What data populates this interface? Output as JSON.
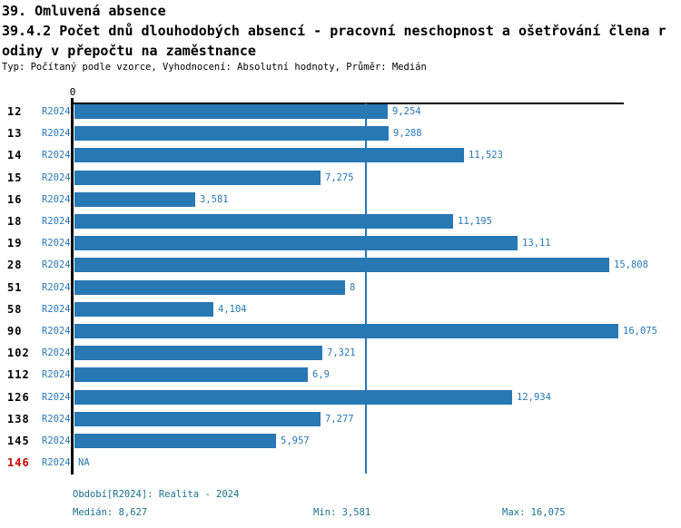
{
  "header": {
    "title": "39. Omluvená absence",
    "subtitle_line1": "39.4.2 Počet dnů dlouhodobých absencí - pracovní neschopnost a ošetřování člena r",
    "subtitle_line2": "odiny v přepočtu na zaměstnance",
    "meta": "Typ: Počítaný podle vzorce, Vyhodnocení: Absolutní hodnoty, Průměr: Medián"
  },
  "chart_data": {
    "type": "bar",
    "orientation": "horizontal",
    "title": "39.4.2 Počet dnů dlouhodobých absencí - pracovní neschopnost a ošetřování člena rodiny v přepočtu na zaměstnance",
    "series_label": "R2024",
    "axis": {
      "origin_label": "0",
      "xlim": [
        0,
        16.24
      ],
      "grid": false,
      "median_line_value": 8.627
    },
    "rows": [
      {
        "id": "12",
        "value": 9.254,
        "display": "9,254",
        "highlight": false
      },
      {
        "id": "13",
        "value": 9.288,
        "display": "9,288",
        "highlight": false
      },
      {
        "id": "14",
        "value": 11.523,
        "display": "11,523",
        "highlight": false
      },
      {
        "id": "15",
        "value": 7.275,
        "display": "7,275",
        "highlight": false
      },
      {
        "id": "16",
        "value": 3.581,
        "display": "3,581",
        "highlight": false
      },
      {
        "id": "18",
        "value": 11.195,
        "display": "11,195",
        "highlight": false
      },
      {
        "id": "19",
        "value": 13.11,
        "display": "13,11",
        "highlight": false
      },
      {
        "id": "28",
        "value": 15.808,
        "display": "15,808",
        "highlight": false
      },
      {
        "id": "51",
        "value": 8,
        "display": "8",
        "highlight": false
      },
      {
        "id": "58",
        "value": 4.104,
        "display": "4,104",
        "highlight": false
      },
      {
        "id": "90",
        "value": 16.075,
        "display": "16,075",
        "highlight": false
      },
      {
        "id": "102",
        "value": 7.321,
        "display": "7,321",
        "highlight": false
      },
      {
        "id": "112",
        "value": 6.9,
        "display": "6,9",
        "highlight": false
      },
      {
        "id": "126",
        "value": 12.934,
        "display": "12,934",
        "highlight": false
      },
      {
        "id": "138",
        "value": 7.277,
        "display": "7,277",
        "highlight": false
      },
      {
        "id": "145",
        "value": 5.957,
        "display": "5,957",
        "highlight": false
      },
      {
        "id": "146",
        "value": null,
        "display": "NA",
        "highlight": true
      }
    ],
    "stats": {
      "median": 8.627,
      "min": 3.581,
      "max": 16.075
    },
    "colors": {
      "bar": "#2878b4",
      "median_line": "#2878b4",
      "series_label": "#2878b4",
      "value_label": "#2878b4",
      "row_id": "#000000",
      "row_id_highlight": "#cc0000",
      "axis": "#000000",
      "footer_text": "#1a7191"
    }
  },
  "footer": {
    "period_label": "Období[R2024]: Realita - 2024",
    "median_label": "Medián: 8,627",
    "min_label": "Min: 3,581",
    "max_label": "Max: 16,075"
  }
}
